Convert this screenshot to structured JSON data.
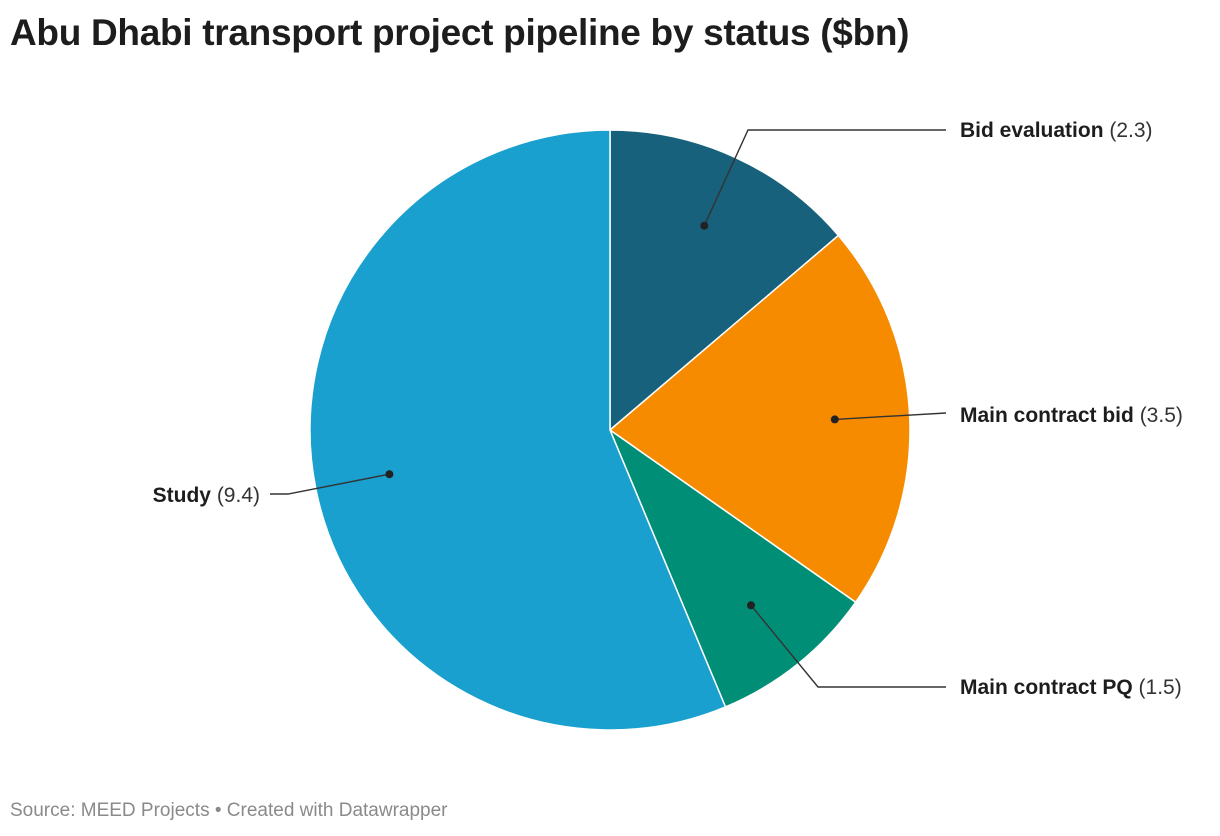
{
  "chart_data": {
    "type": "pie",
    "title": "Abu Dhabi transport project pipeline by status ($bn)",
    "slices": [
      {
        "label": "Bid evaluation",
        "value": 2.3,
        "value_text": "(2.3)",
        "color": "#17617c"
      },
      {
        "label": "Main contract bid",
        "value": 3.5,
        "value_text": "(3.5)",
        "color": "#f78b00"
      },
      {
        "label": "Main contract PQ",
        "value": 1.5,
        "value_text": "(1.5)",
        "color": "#008f76"
      },
      {
        "label": "Study",
        "value": 9.4,
        "value_text": "(9.4)",
        "color": "#19a0ce"
      }
    ],
    "start_angle": "12 o'clock",
    "direction": "clockwise",
    "legend": "none (direct labels)"
  },
  "footer": {
    "source": "Source: MEED Projects",
    "separator": "•",
    "credit": "Created with Datawrapper"
  }
}
